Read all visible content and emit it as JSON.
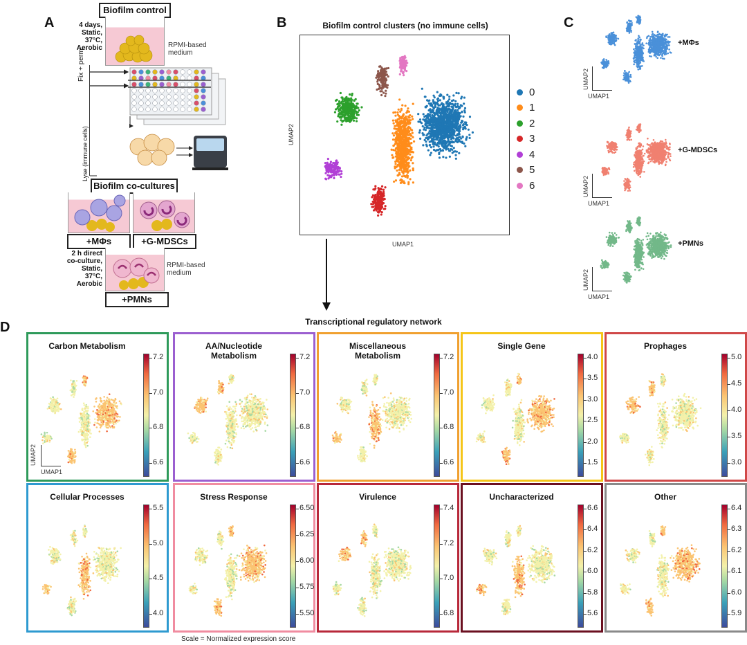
{
  "panelA": {
    "letter": "A",
    "control_title": "Biofilm control",
    "conditions_top": [
      "4 days,",
      "Static,",
      "37°C,",
      "Aerobic"
    ],
    "medium_top": [
      "RPMI-based",
      "medium"
    ],
    "fix_perm": "Fix + perm",
    "lyse": "Lyse (immune cells)",
    "cocultures_title": "Biofilm co-cultures",
    "mphi_label": "+MΦs",
    "gmdsc_label": "+G-MDSCs",
    "conditions_bottom": [
      "2 h direct",
      "co-culture,",
      "Static,",
      "37°C,",
      "Aerobic"
    ],
    "medium_bottom": [
      "RPMI-based",
      "medium"
    ],
    "pmn_label": "+PMNs"
  },
  "panelB": {
    "letter": "B",
    "title": "Biofilm control clusters (no immune cells)",
    "xlabel": "UMAP1",
    "ylabel": "UMAP2",
    "legend": [
      {
        "label": "0",
        "color": "#1f77b4"
      },
      {
        "label": "1",
        "color": "#ff8c1a"
      },
      {
        "label": "2",
        "color": "#2ca02c"
      },
      {
        "label": "3",
        "color": "#d62728"
      },
      {
        "label": "4",
        "color": "#b13fd6"
      },
      {
        "label": "5",
        "color": "#8c564b"
      },
      {
        "label": "6",
        "color": "#e377c2"
      }
    ]
  },
  "panelC": {
    "letter": "C",
    "plots": [
      {
        "label": "+MΦs",
        "color": "#4a90d9"
      },
      {
        "label": "+G-MDSCs",
        "color": "#f08070"
      },
      {
        "label": "+PMNs",
        "color": "#72b889"
      }
    ],
    "xlabel": "UMAP1",
    "ylabel": "UMAP2"
  },
  "panelD": {
    "letter": "D",
    "network_title": "Transcriptional regulatory network",
    "scale_note": "Scale = Normalized expression score",
    "xlabel": "UMAP1",
    "ylabel": "UMAP2",
    "tiles": [
      {
        "title": "Carbon Metabolism",
        "border": "#2e9a5a",
        "ticks": [
          "7.2",
          "7.0",
          "6.8",
          "6.6"
        ]
      },
      {
        "title": "AA/Nucleotide Metabolism",
        "border": "#9b5fd0",
        "ticks": [
          "7.2",
          "7.0",
          "6.8",
          "6.6"
        ]
      },
      {
        "title": "Miscellaneous Metabolism",
        "border": "#f0a030",
        "ticks": [
          "7.2",
          "7.0",
          "6.8",
          "6.6"
        ]
      },
      {
        "title": "Single Gene",
        "border": "#f5c518",
        "ticks": [
          "4.0",
          "3.5",
          "3.0",
          "2.5",
          "2.0",
          "1.5"
        ]
      },
      {
        "title": "Prophages",
        "border": "#d04848",
        "ticks": [
          "5.0",
          "4.5",
          "4.0",
          "3.5",
          "3.0"
        ]
      },
      {
        "title": "Cellular Processes",
        "border": "#2e9ad0",
        "ticks": [
          "5.5",
          "5.0",
          "4.5",
          "4.0"
        ]
      },
      {
        "title": "Stress Response",
        "border": "#f08ca0",
        "ticks": [
          "6.50",
          "6.25",
          "6.00",
          "5.75",
          "5.50"
        ]
      },
      {
        "title": "Virulence",
        "border": "#b8283a",
        "ticks": [
          "7.4",
          "7.2",
          "7.0",
          "6.8"
        ]
      },
      {
        "title": "Uncharacterized",
        "border": "#6b1020",
        "ticks": [
          "6.6",
          "6.4",
          "6.2",
          "6.0",
          "5.8",
          "5.6"
        ]
      },
      {
        "title": "Other",
        "border": "#8a8a8a",
        "ticks": [
          "6.4",
          "6.3",
          "6.2",
          "6.1",
          "6.0",
          "5.9"
        ]
      }
    ]
  }
}
